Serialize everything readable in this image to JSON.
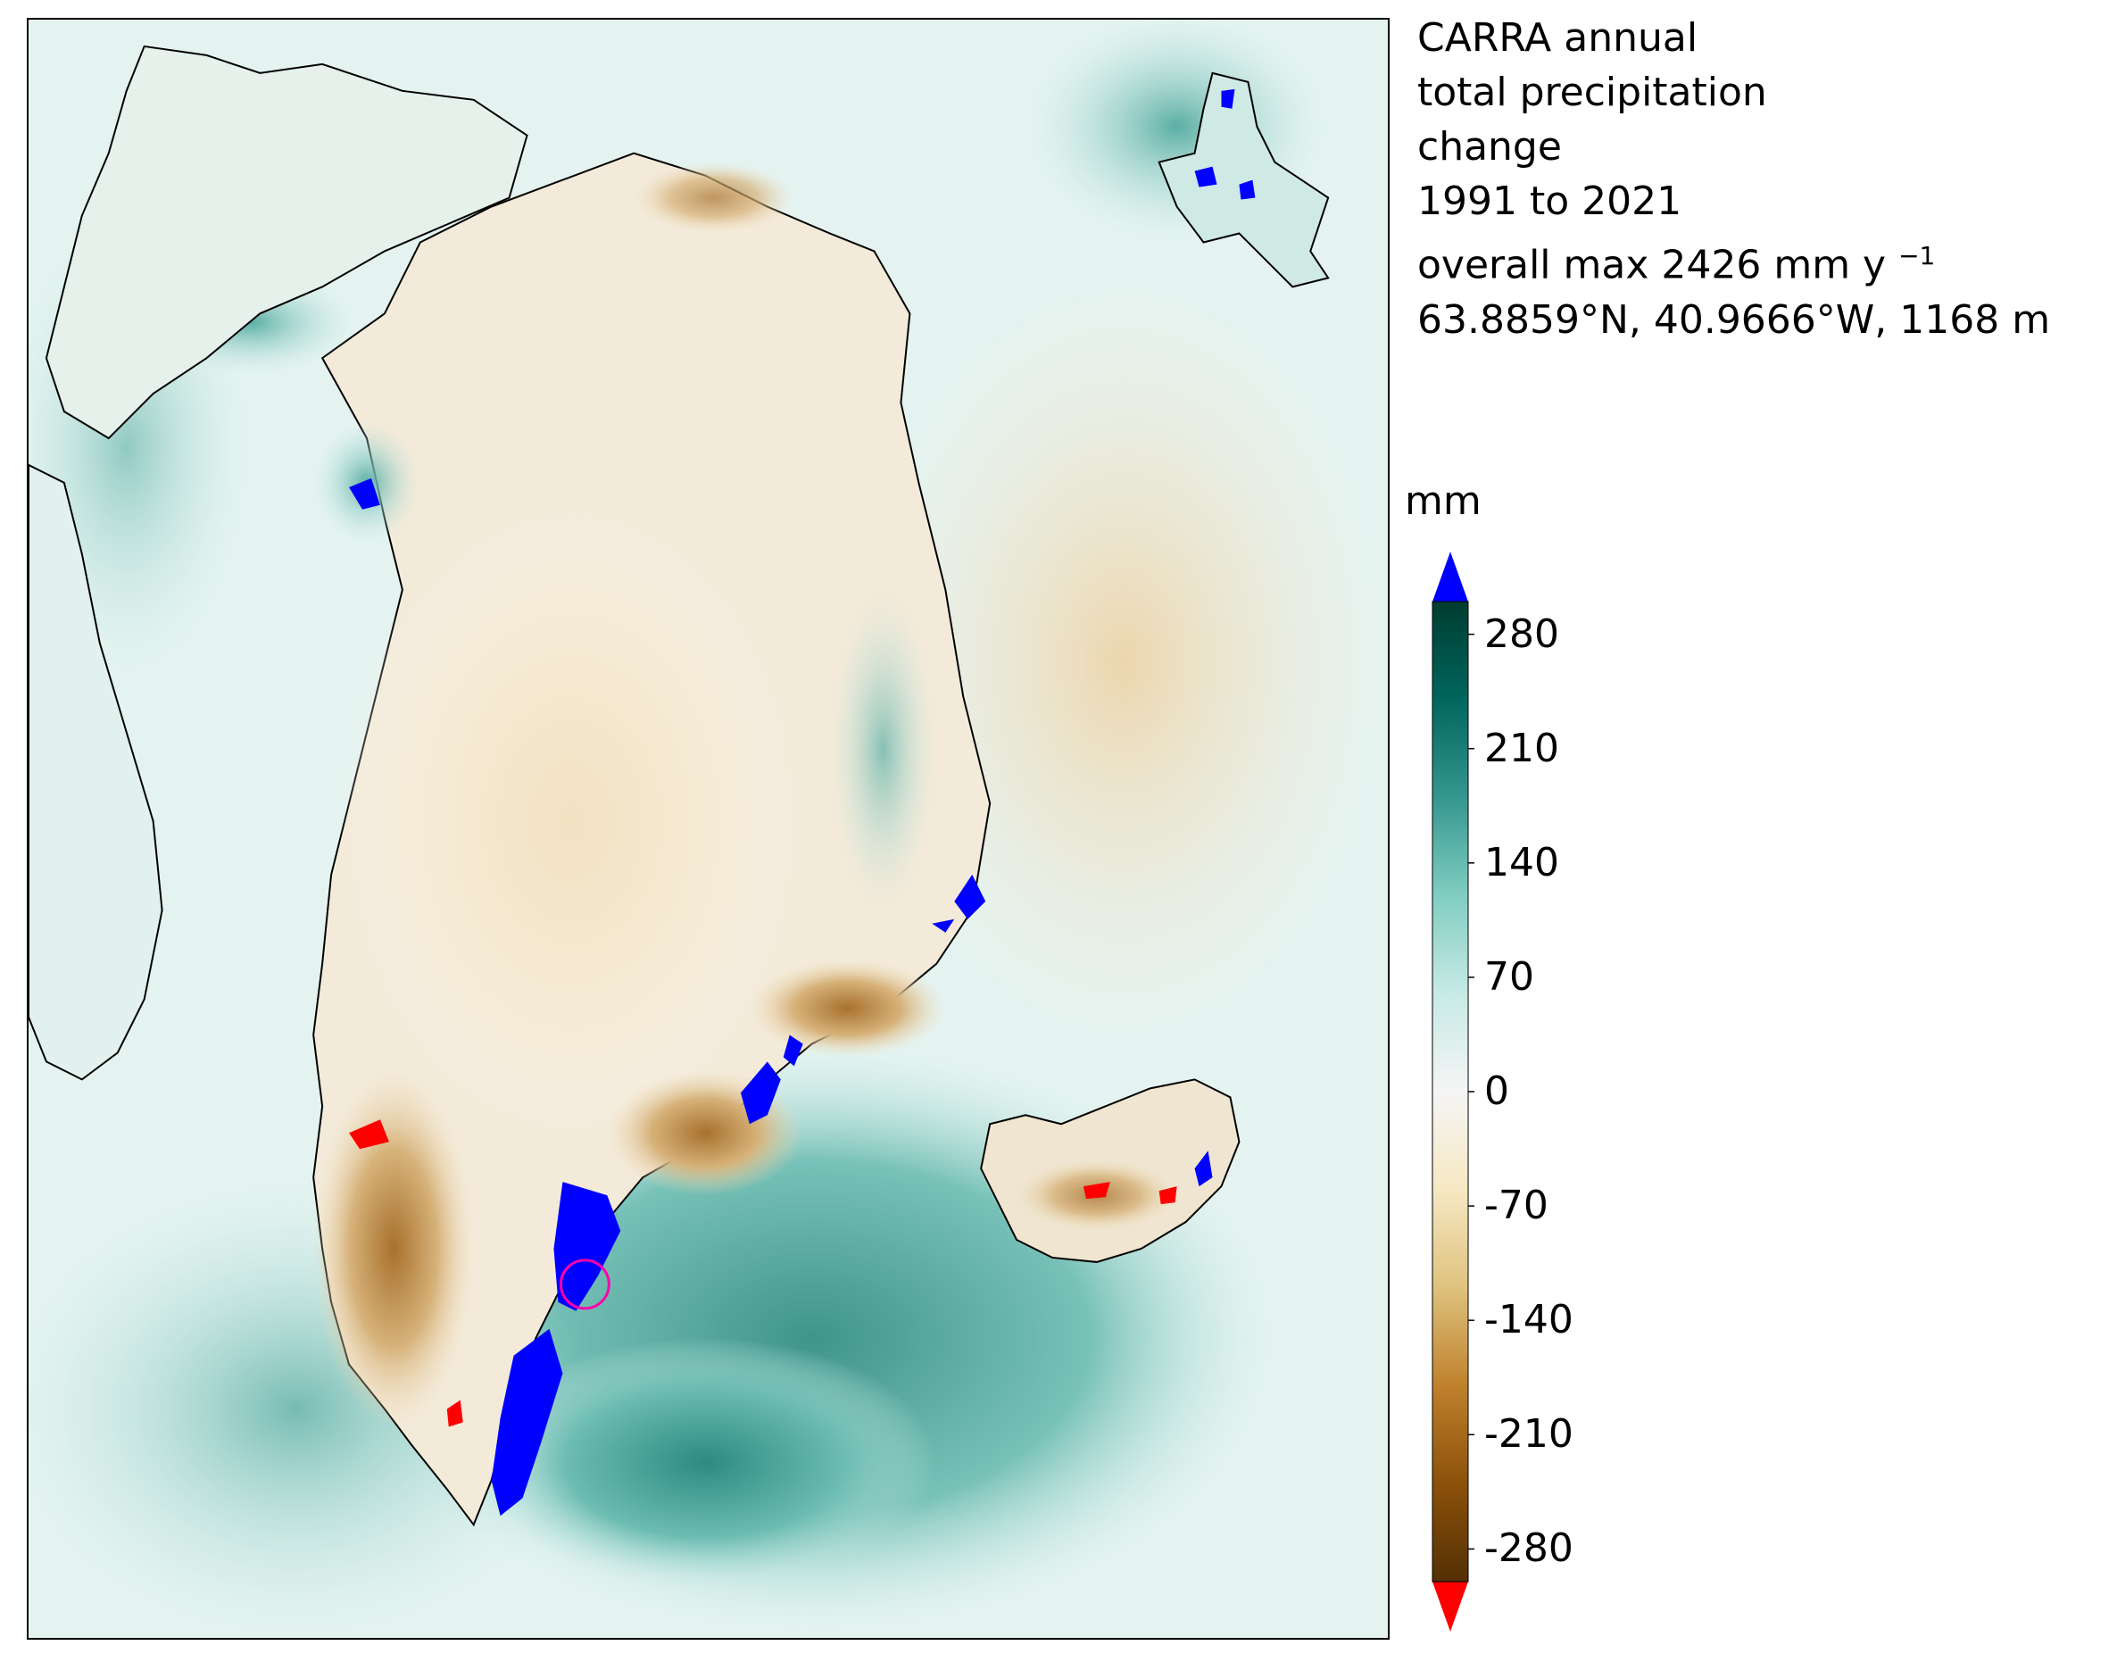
{
  "title": {
    "lines": [
      "CARRA annual",
      "total precipitation",
      "change",
      "1991 to 2021"
    ],
    "max_prefix": "overall max 2426 mm y",
    "max_exponent": "−1",
    "location": "63.8859°N, 40.9666°W, 1168 m"
  },
  "colorbar": {
    "unit": "mm",
    "ticks": [
      "280",
      "210",
      "140",
      "70",
      "0",
      "-70",
      "-140",
      "-210",
      "-280"
    ],
    "tick_values": [
      280,
      210,
      140,
      70,
      0,
      -70,
      -140,
      -210,
      -280
    ],
    "range": [
      -300,
      300
    ],
    "over_color": "#0000ff",
    "under_color": "#ff0000",
    "colormap": "BrBG",
    "stops": [
      "#543005",
      "#8c510a",
      "#bf812d",
      "#dfc27d",
      "#f6e8c3",
      "#f5f5f5",
      "#c7eae5",
      "#80cdc1",
      "#35978f",
      "#01665e",
      "#003c30"
    ]
  },
  "map": {
    "marker_location": "63.8859°N, 40.9666°W",
    "marker_color": "#ff00aa",
    "regions": [
      "Greenland",
      "Svalbard",
      "Iceland",
      "Ellesmere Island"
    ]
  }
}
